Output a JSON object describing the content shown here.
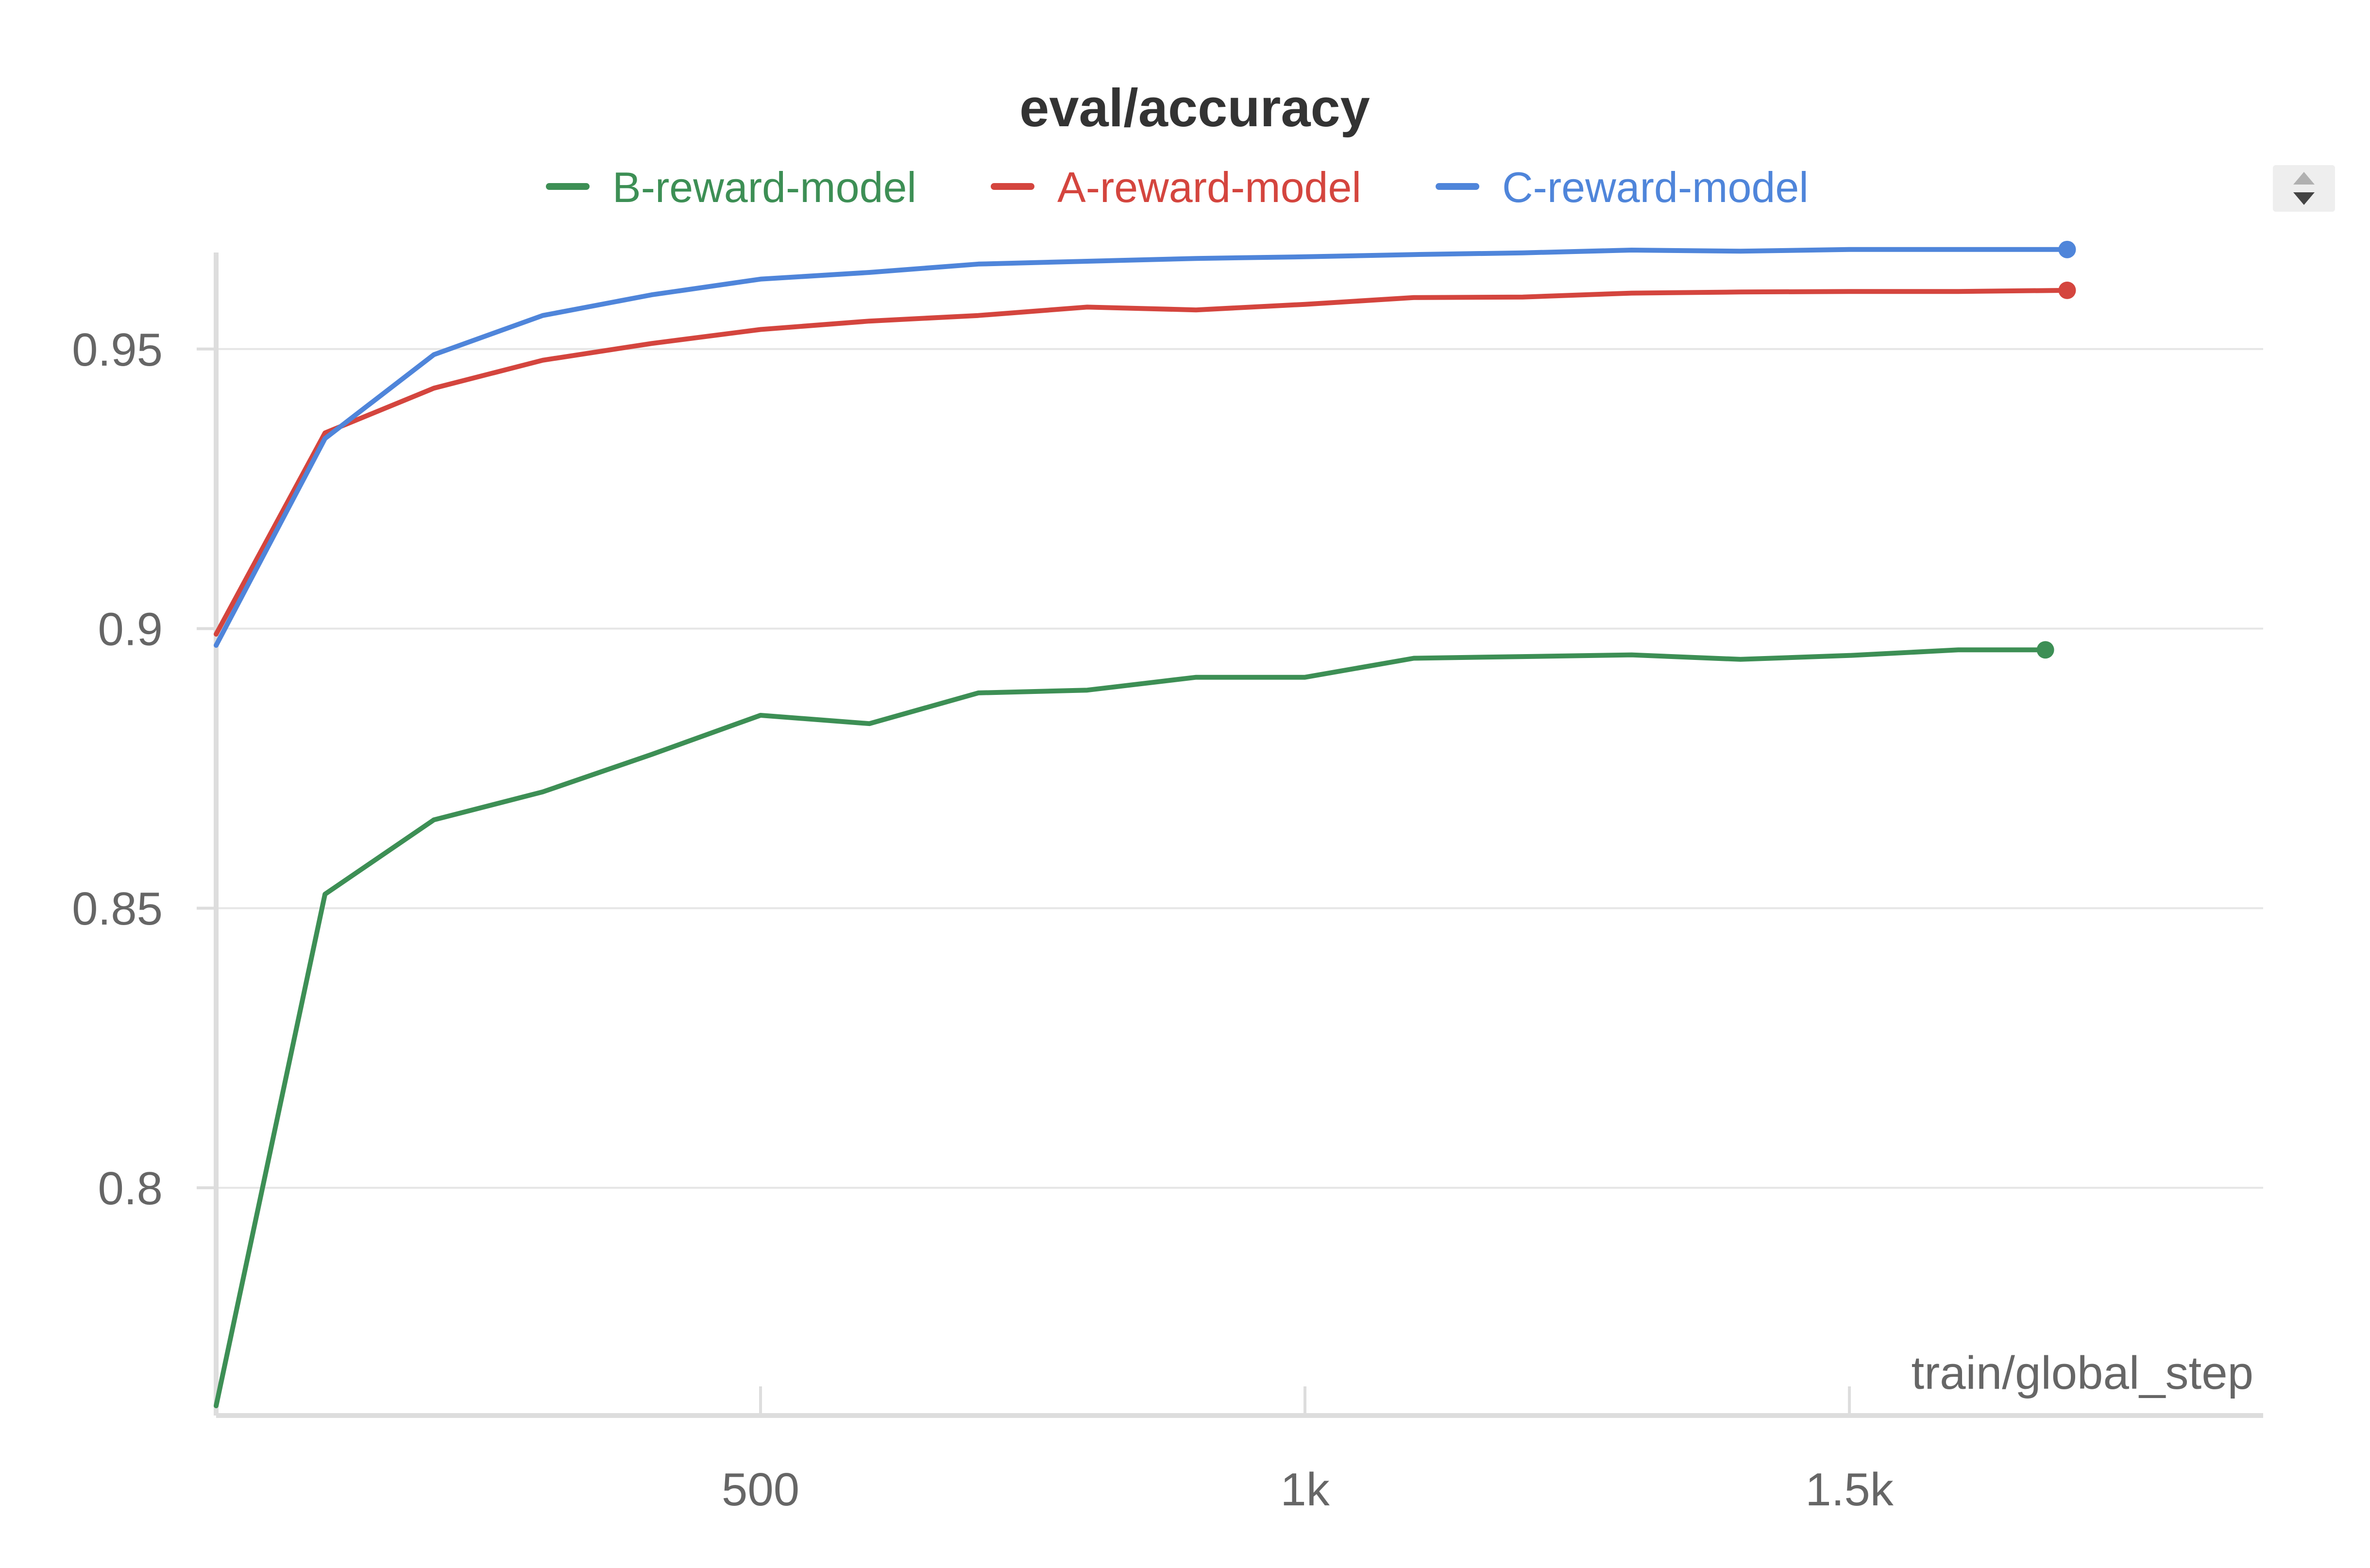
{
  "chart_data": {
    "type": "line",
    "title": "eval/accuracy",
    "xlabel": "train/global_step",
    "ylabel": "",
    "xlim": [
      0,
      1880
    ],
    "ylim": [
      0.761,
      0.969
    ],
    "x_ticks": [
      500,
      1000,
      1500
    ],
    "x_tick_labels": [
      "500",
      "1k",
      "1.5k"
    ],
    "y_ticks": [
      0.8,
      0.85,
      0.9,
      0.95
    ],
    "y_tick_labels": [
      "0.8",
      "0.85",
      "0.9",
      "0.95"
    ],
    "grid": "horizontal",
    "legend_position": "top-center",
    "series": [
      {
        "name": "B-reward-model",
        "color": "#3d8f55",
        "x": [
          0,
          100,
          200,
          300,
          400,
          500,
          600,
          700,
          800,
          900,
          1000,
          1100,
          1200,
          1300,
          1400,
          1500,
          1600,
          1680
        ],
        "y": [
          0.761,
          0.8525,
          0.8658,
          0.8708,
          0.8775,
          0.8845,
          0.883,
          0.8885,
          0.889,
          0.8913,
          0.8913,
          0.8947,
          0.895,
          0.8953,
          0.8945,
          0.8952,
          0.8962,
          0.8962
        ]
      },
      {
        "name": "A-reward-model",
        "color": "#d4453e",
        "x": [
          0,
          100,
          200,
          300,
          400,
          500,
          600,
          700,
          800,
          900,
          1000,
          1100,
          1200,
          1300,
          1400,
          1500,
          1600,
          1700
        ],
        "y": [
          0.899,
          0.935,
          0.943,
          0.948,
          0.951,
          0.9535,
          0.955,
          0.956,
          0.9575,
          0.957,
          0.958,
          0.9592,
          0.9593,
          0.96,
          0.9602,
          0.9603,
          0.9603,
          0.9605
        ]
      },
      {
        "name": "C-reward-model",
        "color": "#4f85da",
        "x": [
          0,
          100,
          200,
          300,
          400,
          500,
          600,
          700,
          800,
          900,
          1000,
          1100,
          1200,
          1300,
          1400,
          1500,
          1600,
          1700
        ],
        "y": [
          0.897,
          0.934,
          0.949,
          0.956,
          0.9597,
          0.9625,
          0.9637,
          0.9652,
          0.9657,
          0.9662,
          0.9665,
          0.9669,
          0.9672,
          0.9677,
          0.9675,
          0.9678,
          0.9678,
          0.9678
        ]
      }
    ]
  },
  "legend": {
    "items": [
      {
        "label": "B-reward-model",
        "color": "#3d8f55"
      },
      {
        "label": "A-reward-model",
        "color": "#d4453e"
      },
      {
        "label": "C-reward-model",
        "color": "#4f85da"
      }
    ]
  },
  "controls": {
    "scroll_icon": "up-down-arrows-icon"
  }
}
